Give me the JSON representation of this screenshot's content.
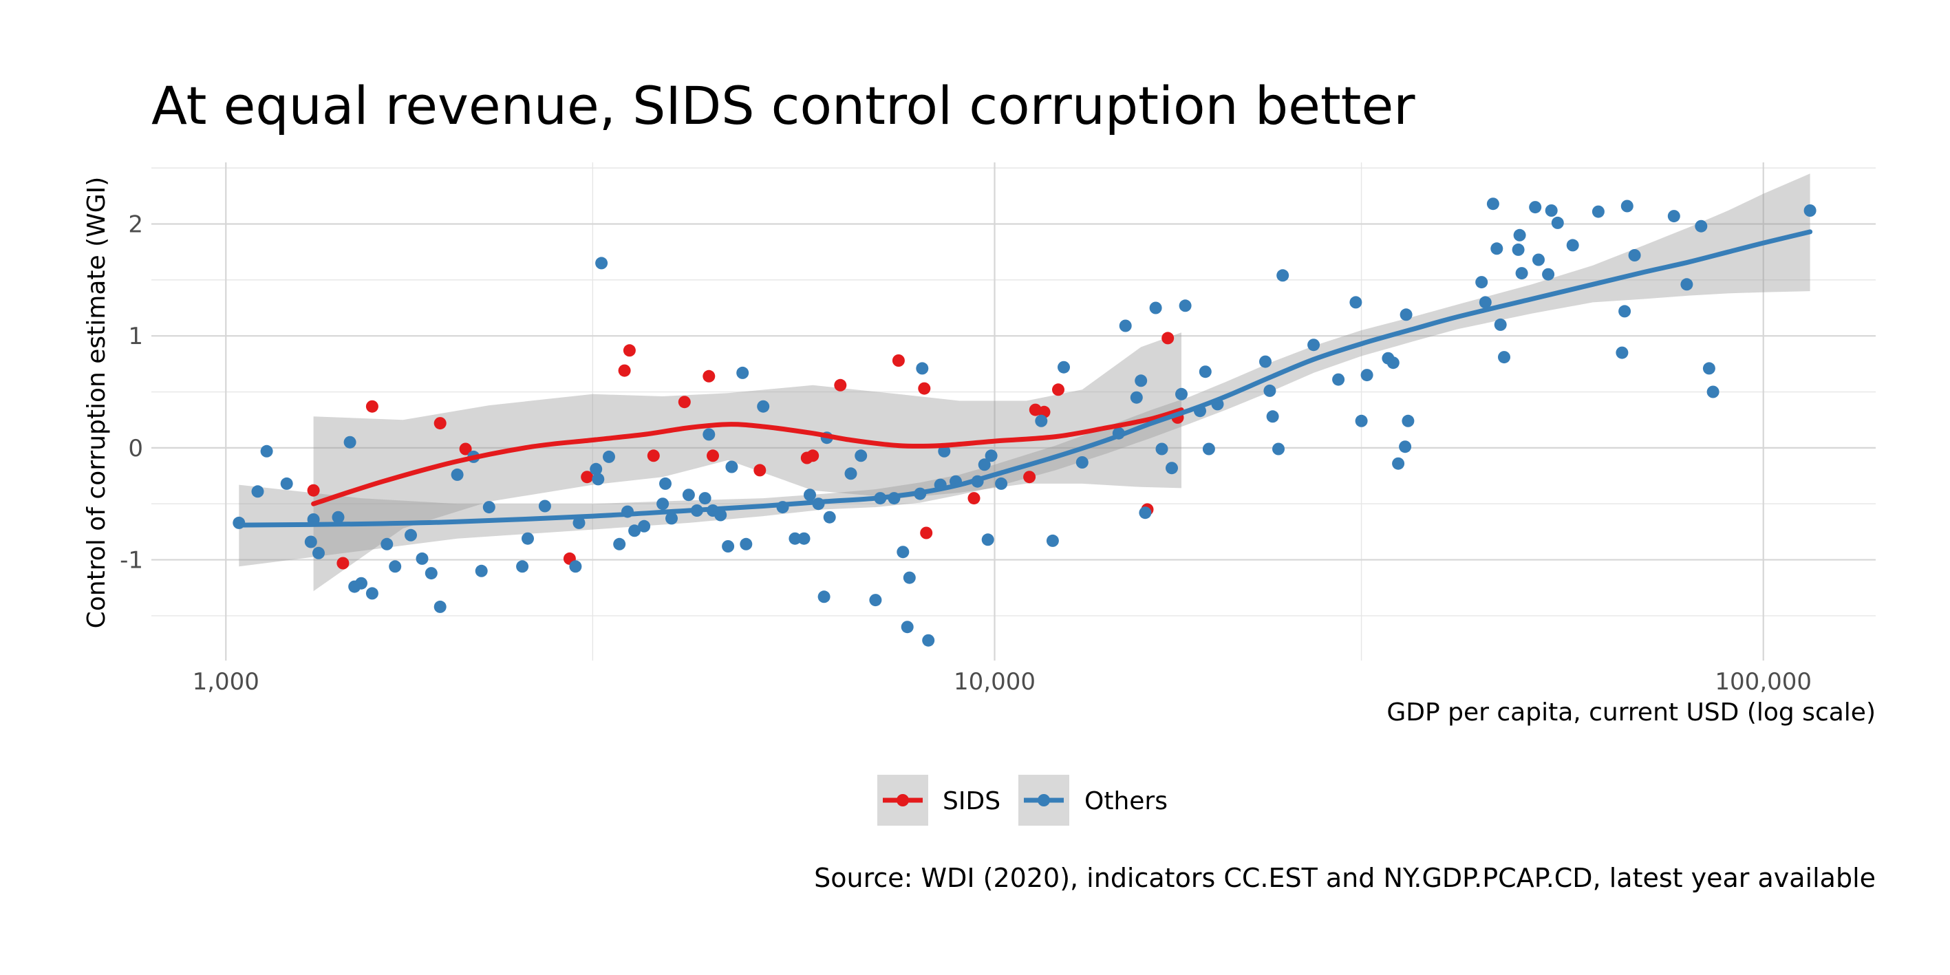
{
  "chart_data": {
    "type": "scatter",
    "title": "At equal revenue, SIDS control corruption better",
    "xlabel": "GDP per capita, current USD (log scale)",
    "ylabel": "Control of corruption estimate (WGI)",
    "caption": "Source: WDI (2020), indicators CC.EST and NY.GDP.PCAP.CD, latest year available",
    "x_scale": "log10",
    "xlim": [
      800,
      140000
    ],
    "ylim": [
      -1.9,
      2.55
    ],
    "x_ticks": [
      1000,
      10000,
      100000
    ],
    "x_tick_labels": [
      "1,000",
      "10,000",
      "100,000"
    ],
    "y_ticks": [
      -1,
      0,
      1,
      2
    ],
    "y_tick_labels": [
      "-1",
      "0",
      "1",
      "2"
    ],
    "grid": true,
    "legend_position": "bottom",
    "series": [
      {
        "name": "SIDS",
        "color": "#e41a1c",
        "points": [
          [
            1300,
            -0.38
          ],
          [
            1420,
            -1.03
          ],
          [
            1550,
            0.37
          ],
          [
            1900,
            0.22
          ],
          [
            2050,
            -0.01
          ],
          [
            2800,
            -0.99
          ],
          [
            2950,
            -0.26
          ],
          [
            3300,
            0.69
          ],
          [
            3350,
            0.87
          ],
          [
            3600,
            -0.07
          ],
          [
            3950,
            0.41
          ],
          [
            4250,
            0.64
          ],
          [
            4300,
            -0.07
          ],
          [
            4950,
            -0.2
          ],
          [
            5700,
            -0.09
          ],
          [
            5800,
            -0.07
          ],
          [
            6300,
            0.56
          ],
          [
            7500,
            0.78
          ],
          [
            8100,
            0.53
          ],
          [
            8150,
            -0.76
          ],
          [
            9400,
            -0.45
          ],
          [
            11100,
            -0.26
          ],
          [
            11300,
            0.34
          ],
          [
            11600,
            0.32
          ],
          [
            12100,
            0.52
          ],
          [
            15800,
            -0.55
          ],
          [
            16800,
            0.98
          ],
          [
            17300,
            0.27
          ]
        ],
        "trend": [
          [
            1300,
            -0.5
          ],
          [
            1600,
            -0.3
          ],
          [
            2000,
            -0.12
          ],
          [
            2500,
            0.01
          ],
          [
            3000,
            0.07
          ],
          [
            3500,
            0.12
          ],
          [
            4000,
            0.18
          ],
          [
            4500,
            0.21
          ],
          [
            5000,
            0.19
          ],
          [
            5800,
            0.13
          ],
          [
            6500,
            0.07
          ],
          [
            7500,
            0.02
          ],
          [
            8500,
            0.02
          ],
          [
            10000,
            0.06
          ],
          [
            12000,
            0.1
          ],
          [
            14000,
            0.18
          ],
          [
            16000,
            0.26
          ],
          [
            17500,
            0.34
          ]
        ],
        "band": [
          [
            1300,
            0.28,
            -1.28
          ],
          [
            1700,
            0.25,
            -0.72
          ],
          [
            2200,
            0.38,
            -0.48
          ],
          [
            3000,
            0.48,
            -0.33
          ],
          [
            3700,
            0.46,
            -0.26
          ],
          [
            4500,
            0.49,
            -0.11
          ],
          [
            5800,
            0.56,
            -0.38
          ],
          [
            7500,
            0.48,
            -0.45
          ],
          [
            9000,
            0.42,
            -0.4
          ],
          [
            11000,
            0.42,
            -0.32
          ],
          [
            13000,
            0.52,
            -0.32
          ],
          [
            15500,
            0.9,
            -0.35
          ],
          [
            17500,
            1.03,
            -0.36
          ]
        ]
      },
      {
        "name": "Others",
        "color": "#377eb8",
        "points": [
          [
            1040,
            -0.67
          ],
          [
            1100,
            -0.39
          ],
          [
            1130,
            -0.03
          ],
          [
            1200,
            -0.32
          ],
          [
            1290,
            -0.84
          ],
          [
            1300,
            -0.64
          ],
          [
            1320,
            -0.94
          ],
          [
            1400,
            -0.62
          ],
          [
            1450,
            0.05
          ],
          [
            1470,
            -1.24
          ],
          [
            1500,
            -1.21
          ],
          [
            1550,
            -1.3
          ],
          [
            1620,
            -0.86
          ],
          [
            1660,
            -1.06
          ],
          [
            1740,
            -0.78
          ],
          [
            1800,
            -0.99
          ],
          [
            1850,
            -1.12
          ],
          [
            1900,
            -1.42
          ],
          [
            2000,
            -0.24
          ],
          [
            2100,
            -0.08
          ],
          [
            2150,
            -1.1
          ],
          [
            2200,
            -0.53
          ],
          [
            2430,
            -1.06
          ],
          [
            2470,
            -0.81
          ],
          [
            2600,
            -0.52
          ],
          [
            2850,
            -1.06
          ],
          [
            2880,
            -0.67
          ],
          [
            3030,
            -0.19
          ],
          [
            3050,
            -0.28
          ],
          [
            3080,
            1.65
          ],
          [
            3150,
            -0.08
          ],
          [
            3250,
            -0.86
          ],
          [
            3330,
            -0.57
          ],
          [
            3400,
            -0.74
          ],
          [
            3500,
            -0.7
          ],
          [
            3700,
            -0.5
          ],
          [
            3730,
            -0.32
          ],
          [
            3800,
            -0.63
          ],
          [
            4000,
            -0.42
          ],
          [
            4100,
            -0.56
          ],
          [
            4200,
            -0.45
          ],
          [
            4250,
            0.12
          ],
          [
            4300,
            -0.56
          ],
          [
            4400,
            -0.6
          ],
          [
            4500,
            -0.88
          ],
          [
            4550,
            -0.17
          ],
          [
            4700,
            0.67
          ],
          [
            4750,
            -0.86
          ],
          [
            5000,
            0.37
          ],
          [
            5300,
            -0.53
          ],
          [
            5500,
            -0.81
          ],
          [
            5650,
            -0.81
          ],
          [
            5750,
            -0.42
          ],
          [
            5900,
            -0.5
          ],
          [
            6000,
            -1.33
          ],
          [
            6050,
            0.09
          ],
          [
            6100,
            -0.62
          ],
          [
            6500,
            -0.23
          ],
          [
            6700,
            -0.07
          ],
          [
            7000,
            -1.36
          ],
          [
            7100,
            -0.45
          ],
          [
            7400,
            -0.45
          ],
          [
            7600,
            -0.93
          ],
          [
            7700,
            -1.6
          ],
          [
            7750,
            -1.16
          ],
          [
            8000,
            -0.41
          ],
          [
            8050,
            0.71
          ],
          [
            8200,
            -1.72
          ],
          [
            8500,
            -0.33
          ],
          [
            8600,
            -0.03
          ],
          [
            8900,
            -0.3
          ],
          [
            9500,
            -0.3
          ],
          [
            9700,
            -0.15
          ],
          [
            9800,
            -0.82
          ],
          [
            9900,
            -0.07
          ],
          [
            10200,
            -0.32
          ],
          [
            11500,
            0.24
          ],
          [
            11900,
            -0.83
          ],
          [
            12300,
            0.72
          ],
          [
            13000,
            -0.13
          ],
          [
            14500,
            0.13
          ],
          [
            14800,
            1.09
          ],
          [
            15300,
            0.45
          ],
          [
            15500,
            0.6
          ],
          [
            15700,
            -0.58
          ],
          [
            16200,
            1.25
          ],
          [
            16500,
            -0.01
          ],
          [
            17000,
            -0.18
          ],
          [
            17500,
            0.48
          ],
          [
            17700,
            1.27
          ],
          [
            18500,
            0.33
          ],
          [
            18800,
            0.68
          ],
          [
            19000,
            -0.01
          ],
          [
            19500,
            0.39
          ],
          [
            22500,
            0.77
          ],
          [
            22800,
            0.51
          ],
          [
            23000,
            0.28
          ],
          [
            23400,
            -0.01
          ],
          [
            23700,
            1.54
          ],
          [
            26000,
            0.92
          ],
          [
            28000,
            0.61
          ],
          [
            29500,
            1.3
          ],
          [
            30000,
            0.24
          ],
          [
            30500,
            0.65
          ],
          [
            32500,
            0.8
          ],
          [
            33000,
            0.76
          ],
          [
            33500,
            -0.14
          ],
          [
            34200,
            0.01
          ],
          [
            34500,
            0.24
          ],
          [
            34300,
            1.19
          ],
          [
            43000,
            1.48
          ],
          [
            43500,
            1.3
          ],
          [
            44500,
            2.18
          ],
          [
            45000,
            1.78
          ],
          [
            45500,
            1.1
          ],
          [
            46000,
            0.81
          ],
          [
            48000,
            1.77
          ],
          [
            48200,
            1.9
          ],
          [
            48500,
            1.56
          ],
          [
            50500,
            2.15
          ],
          [
            51000,
            1.68
          ],
          [
            52500,
            1.55
          ],
          [
            53000,
            2.12
          ],
          [
            54000,
            2.01
          ],
          [
            56500,
            1.81
          ],
          [
            61000,
            2.11
          ],
          [
            65500,
            0.85
          ],
          [
            66000,
            1.22
          ],
          [
            66500,
            2.16
          ],
          [
            68000,
            1.72
          ],
          [
            76500,
            2.07
          ],
          [
            79500,
            1.46
          ],
          [
            83000,
            1.98
          ],
          [
            85000,
            0.71
          ],
          [
            86000,
            0.5
          ],
          [
            115000,
            2.12
          ]
        ],
        "trend": [
          [
            1040,
            -0.69
          ],
          [
            1500,
            -0.68
          ],
          [
            2000,
            -0.66
          ],
          [
            3000,
            -0.61
          ],
          [
            4000,
            -0.56
          ],
          [
            5000,
            -0.52
          ],
          [
            6000,
            -0.48
          ],
          [
            7000,
            -0.45
          ],
          [
            8000,
            -0.4
          ],
          [
            9000,
            -0.33
          ],
          [
            10000,
            -0.24
          ],
          [
            12000,
            -0.08
          ],
          [
            14000,
            0.07
          ],
          [
            16000,
            0.22
          ],
          [
            18000,
            0.34
          ],
          [
            20000,
            0.46
          ],
          [
            23000,
            0.64
          ],
          [
            26000,
            0.79
          ],
          [
            30000,
            0.93
          ],
          [
            35000,
            1.06
          ],
          [
            40000,
            1.17
          ],
          [
            50000,
            1.33
          ],
          [
            60000,
            1.46
          ],
          [
            70000,
            1.57
          ],
          [
            80000,
            1.66
          ],
          [
            90000,
            1.75
          ],
          [
            100000,
            1.83
          ],
          [
            115000,
            1.93
          ]
        ],
        "band": [
          [
            1040,
            -0.33,
            -1.06
          ],
          [
            1500,
            -0.45,
            -0.92
          ],
          [
            2000,
            -0.5,
            -0.81
          ],
          [
            3000,
            -0.5,
            -0.73
          ],
          [
            4000,
            -0.47,
            -0.67
          ],
          [
            5000,
            -0.45,
            -0.61
          ],
          [
            6000,
            -0.41,
            -0.55
          ],
          [
            7000,
            -0.37,
            -0.53
          ],
          [
            8000,
            -0.31,
            -0.49
          ],
          [
            9000,
            -0.24,
            -0.42
          ],
          [
            10000,
            -0.15,
            -0.35
          ],
          [
            12000,
            0.02,
            -0.2
          ],
          [
            14000,
            0.19,
            -0.05
          ],
          [
            16000,
            0.34,
            0.09
          ],
          [
            18000,
            0.46,
            0.22
          ],
          [
            20000,
            0.59,
            0.34
          ],
          [
            23000,
            0.77,
            0.51
          ],
          [
            26000,
            0.91,
            0.67
          ],
          [
            30000,
            1.05,
            0.82
          ],
          [
            35000,
            1.17,
            0.95
          ],
          [
            40000,
            1.28,
            1.06
          ],
          [
            50000,
            1.46,
            1.2
          ],
          [
            60000,
            1.63,
            1.3
          ],
          [
            70000,
            1.81,
            1.33
          ],
          [
            80000,
            1.97,
            1.36
          ],
          [
            90000,
            2.12,
            1.38
          ],
          [
            100000,
            2.27,
            1.39
          ],
          [
            115000,
            2.45,
            1.4
          ]
        ]
      }
    ]
  }
}
